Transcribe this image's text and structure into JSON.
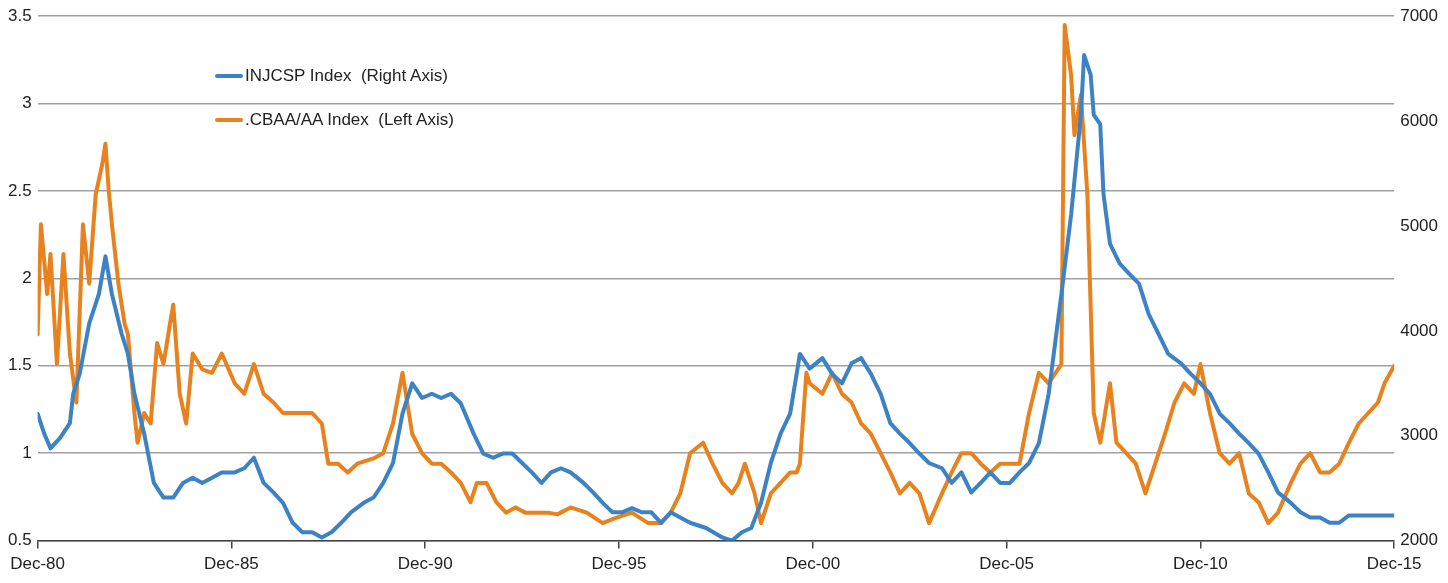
{
  "chart_data": {
    "type": "line",
    "legend": "top left",
    "grid": "y",
    "marker": "none",
    "line_style": "solid",
    "xlim": [
      "1980-12",
      "2015-12"
    ],
    "xticks": [
      {
        "value": "1980-12",
        "label": "Dec-80"
      },
      {
        "value": "1985-12",
        "label": "Dec-85"
      },
      {
        "value": "1990-12",
        "label": "Dec-90"
      },
      {
        "value": "1995-12",
        "label": "Dec-95"
      },
      {
        "value": "2000-12",
        "label": "Dec-00"
      },
      {
        "value": "2005-12",
        "label": "Dec-05"
      },
      {
        "value": "2010-12",
        "label": "Dec-10"
      },
      {
        "value": "2015-12",
        "label": "Dec-15"
      }
    ],
    "ylim": [
      0.5,
      3.5
    ],
    "yticks": [
      0.5,
      1,
      1.5,
      2,
      2.5,
      3,
      3.5
    ],
    "y2lim": [
      2000,
      7000
    ],
    "y2ticks": [
      2000,
      3000,
      4000,
      5000,
      6000,
      7000
    ],
    "series": [
      {
        "name": "INJCSP Index  (Right Axis)",
        "color": "#3d82c4",
        "axis": "y2",
        "x": [
          "1980-12",
          "1981-02",
          "1981-04",
          "1981-07",
          "1981-10",
          "1981-11",
          "1982-01",
          "1982-04",
          "1982-07",
          "1982-09",
          "1982-11",
          "1983-02",
          "1983-04",
          "1983-06",
          "1983-09",
          "1983-12",
          "1984-03",
          "1984-06",
          "1984-09",
          "1984-12",
          "1985-03",
          "1985-06",
          "1985-09",
          "1986-01",
          "1986-04",
          "1986-07",
          "1986-10",
          "1987-01",
          "1987-04",
          "1987-07",
          "1987-10",
          "1988-01",
          "1988-04",
          "1988-07",
          "1988-10",
          "1989-01",
          "1989-05",
          "1989-08",
          "1989-11",
          "1990-02",
          "1990-05",
          "1990-08",
          "1990-11",
          "1991-02",
          "1991-05",
          "1991-08",
          "1991-11",
          "1992-03",
          "1992-06",
          "1992-09",
          "1992-12",
          "1993-03",
          "1993-06",
          "1993-09",
          "1993-12",
          "1994-03",
          "1994-06",
          "1994-09",
          "1995-01",
          "1995-04",
          "1995-07",
          "1995-10",
          "1996-01",
          "1996-04",
          "1996-07",
          "1996-10",
          "1997-01",
          "1997-04",
          "1997-07",
          "1997-10",
          "1998-03",
          "1998-08",
          "1998-11",
          "1999-02",
          "1999-05",
          "1999-08",
          "1999-11",
          "2000-02",
          "2000-05",
          "2000-08",
          "2000-11",
          "2001-03",
          "2001-06",
          "2001-09",
          "2001-12",
          "2002-03",
          "2002-06",
          "2002-09",
          "2002-12",
          "2003-03",
          "2003-06",
          "2003-09",
          "2003-12",
          "2004-04",
          "2004-07",
          "2004-10",
          "2005-01",
          "2005-04",
          "2005-07",
          "2005-10",
          "2006-01",
          "2006-04",
          "2006-07",
          "2006-10",
          "2007-01",
          "2007-05",
          "2007-08",
          "2007-11",
          "2007-12",
          "2008-02",
          "2008-03",
          "2008-05",
          "2008-06",
          "2008-08",
          "2008-11",
          "2009-02",
          "2009-05",
          "2009-08",
          "2009-11",
          "2010-02",
          "2010-06",
          "2010-09",
          "2010-12",
          "2011-03",
          "2011-06",
          "2011-09",
          "2011-12",
          "2012-03",
          "2012-06",
          "2012-09",
          "2012-12",
          "2013-04",
          "2013-07",
          "2013-10",
          "2014-01",
          "2014-04",
          "2014-07",
          "2014-10",
          "2015-12"
        ],
        "values": [
          3210,
          3020,
          2880,
          2980,
          3120,
          3400,
          3590,
          4070,
          4350,
          4710,
          4350,
          3970,
          3780,
          3400,
          3020,
          2550,
          2410,
          2410,
          2550,
          2600,
          2550,
          2600,
          2650,
          2650,
          2690,
          2790,
          2550,
          2460,
          2360,
          2170,
          2080,
          2080,
          2030,
          2080,
          2170,
          2270,
          2360,
          2410,
          2550,
          2740,
          3210,
          3500,
          3360,
          3400,
          3360,
          3400,
          3310,
          3020,
          2830,
          2790,
          2830,
          2830,
          2740,
          2650,
          2550,
          2650,
          2690,
          2650,
          2550,
          2460,
          2360,
          2270,
          2270,
          2310,
          2270,
          2270,
          2170,
          2270,
          2220,
          2170,
          2120,
          2030,
          2000,
          2080,
          2120,
          2360,
          2740,
          3020,
          3210,
          3780,
          3640,
          3740,
          3590,
          3500,
          3690,
          3740,
          3590,
          3400,
          3120,
          3020,
          2930,
          2830,
          2740,
          2690,
          2550,
          2650,
          2460,
          2550,
          2650,
          2550,
          2550,
          2650,
          2740,
          2930,
          3400,
          4350,
          5110,
          6060,
          6630,
          6440,
          6060,
          5970,
          5300,
          4830,
          4640,
          4540,
          4450,
          4160,
          3970,
          3780,
          3690,
          3590,
          3500,
          3400,
          3210,
          3120,
          3020,
          2930,
          2830,
          2650,
          2460,
          2360,
          2270,
          2220,
          2220,
          2170,
          2170,
          2240,
          2240
        ]
      },
      {
        "name": ".CBAA/AA Index  (Left Axis)",
        "color": "#e8821e",
        "x": [
          "1980-12",
          "1981-01",
          "1981-03",
          "1981-04",
          "1981-06",
          "1981-08",
          "1981-10",
          "1981-12",
          "1982-02",
          "1982-04",
          "1982-06",
          "1982-08",
          "1982-09",
          "1982-10",
          "1982-11",
          "1983-01",
          "1983-03",
          "1983-04",
          "1983-06",
          "1983-07",
          "1983-09",
          "1983-11",
          "1984-01",
          "1984-03",
          "1984-05",
          "1984-06",
          "1984-08",
          "1984-10",
          "1984-12",
          "1985-03",
          "1985-06",
          "1985-09",
          "1986-01",
          "1986-04",
          "1986-07",
          "1986-10",
          "1987-01",
          "1987-04",
          "1987-07",
          "1987-10",
          "1988-01",
          "1988-04",
          "1988-06",
          "1988-09",
          "1988-12",
          "1989-03",
          "1989-08",
          "1989-11",
          "1990-02",
          "1990-05",
          "1990-08",
          "1990-11",
          "1991-02",
          "1991-05",
          "1991-08",
          "1991-11",
          "1992-02",
          "1992-04",
          "1992-07",
          "1992-10",
          "1993-01",
          "1993-04",
          "1993-07",
          "1993-11",
          "1994-02",
          "1994-05",
          "1994-09",
          "1995-02",
          "1995-07",
          "1995-11",
          "1996-04",
          "1996-09",
          "1997-01",
          "1997-04",
          "1997-07",
          "1997-10",
          "1998-02",
          "1998-05",
          "1998-08",
          "1998-11",
          "1999-01",
          "1999-03",
          "1999-06",
          "1999-08",
          "1999-11",
          "2000-02",
          "2000-05",
          "2000-07",
          "2000-08",
          "2000-10",
          "2000-11",
          "2001-03",
          "2001-06",
          "2001-09",
          "2001-12",
          "2002-03",
          "2002-06",
          "2002-09",
          "2002-12",
          "2003-03",
          "2003-06",
          "2003-09",
          "2003-12",
          "2004-04",
          "2004-07",
          "2004-10",
          "2005-01",
          "2005-04",
          "2005-07",
          "2005-10",
          "2006-01",
          "2006-04",
          "2006-07",
          "2006-10",
          "2007-01",
          "2007-05",
          "2007-06",
          "2007-08",
          "2007-09",
          "2007-11",
          "2008-01",
          "2008-03",
          "2008-05",
          "2008-08",
          "2008-10",
          "2009-01",
          "2009-04",
          "2009-07",
          "2009-10",
          "2010-01",
          "2010-04",
          "2010-07",
          "2010-10",
          "2010-12",
          "2011-03",
          "2011-06",
          "2011-09",
          "2011-12",
          "2012-03",
          "2012-06",
          "2012-09",
          "2012-12",
          "2013-04",
          "2013-07",
          "2013-10",
          "2014-01",
          "2014-04",
          "2014-07",
          "2014-10",
          "2015-01",
          "2015-04",
          "2015-07",
          "2015-09",
          "2015-12"
        ],
        "values": [
          1.68,
          2.31,
          1.91,
          2.14,
          1.51,
          2.14,
          1.57,
          1.29,
          2.31,
          1.97,
          2.48,
          2.65,
          2.77,
          2.51,
          2.31,
          1.97,
          1.74,
          1.68,
          1.23,
          1.06,
          1.23,
          1.17,
          1.63,
          1.51,
          1.74,
          1.85,
          1.34,
          1.17,
          1.57,
          1.48,
          1.46,
          1.57,
          1.4,
          1.34,
          1.51,
          1.34,
          1.29,
          1.23,
          1.23,
          1.23,
          1.23,
          1.17,
          0.94,
          0.94,
          0.89,
          0.94,
          0.97,
          1.0,
          1.17,
          1.46,
          1.11,
          1.0,
          0.94,
          0.94,
          0.89,
          0.83,
          0.72,
          0.83,
          0.83,
          0.72,
          0.66,
          0.69,
          0.66,
          0.66,
          0.66,
          0.65,
          0.69,
          0.66,
          0.6,
          0.63,
          0.66,
          0.6,
          0.6,
          0.66,
          0.77,
          1.0,
          1.06,
          0.94,
          0.83,
          0.77,
          0.83,
          0.94,
          0.77,
          0.6,
          0.77,
          0.83,
          0.89,
          0.89,
          0.94,
          1.46,
          1.4,
          1.34,
          1.46,
          1.34,
          1.29,
          1.17,
          1.11,
          1.0,
          0.89,
          0.77,
          0.83,
          0.77,
          0.6,
          0.77,
          0.89,
          1.0,
          1.0,
          0.94,
          0.89,
          0.94,
          0.94,
          0.94,
          1.23,
          1.46,
          1.4,
          1.51,
          3.45,
          3.16,
          2.82,
          3.05,
          2.48,
          1.23,
          1.06,
          1.4,
          1.06,
          1.0,
          0.94,
          0.77,
          0.94,
          1.11,
          1.29,
          1.4,
          1.34,
          1.51,
          1.23,
          1.0,
          0.94,
          1.0,
          0.77,
          0.72,
          0.6,
          0.66,
          0.83,
          0.94,
          1.0,
          0.89,
          0.89,
          0.94,
          1.06,
          1.17,
          1.23,
          1.29,
          1.4,
          1.5
        ]
      }
    ]
  }
}
